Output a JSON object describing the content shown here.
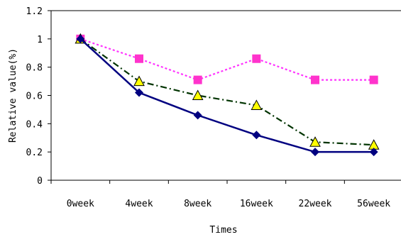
{
  "chart_data": {
    "type": "line",
    "xlabel": "Times",
    "ylabel": "Relative value(%)",
    "categories": [
      "0week",
      "4week",
      "8week",
      "16week",
      "22week",
      "56week"
    ],
    "ylim": [
      0,
      1.2
    ],
    "yticks": [
      "0",
      "0.2",
      "0.4",
      "0.6",
      "0.8",
      "1",
      "1.2"
    ],
    "grid": false,
    "legend": "none",
    "series": [
      {
        "values": [
          1.0,
          0.86,
          0.71,
          0.86,
          0.71,
          0.71
        ],
        "color": "#ff33ff",
        "line_style": "dotted",
        "marker": "square",
        "marker_color": "#ff33cc"
      },
      {
        "values": [
          1.0,
          0.7,
          0.6,
          0.53,
          0.27,
          0.25
        ],
        "color": "#003300",
        "line_style": "dash-dot",
        "marker": "triangle",
        "marker_color": "#ffff00"
      },
      {
        "values": [
          1.0,
          0.62,
          0.46,
          0.32,
          0.2,
          0.2
        ],
        "color": "#000080",
        "line_style": "solid",
        "marker": "diamond",
        "marker_color": "#000080"
      }
    ]
  }
}
